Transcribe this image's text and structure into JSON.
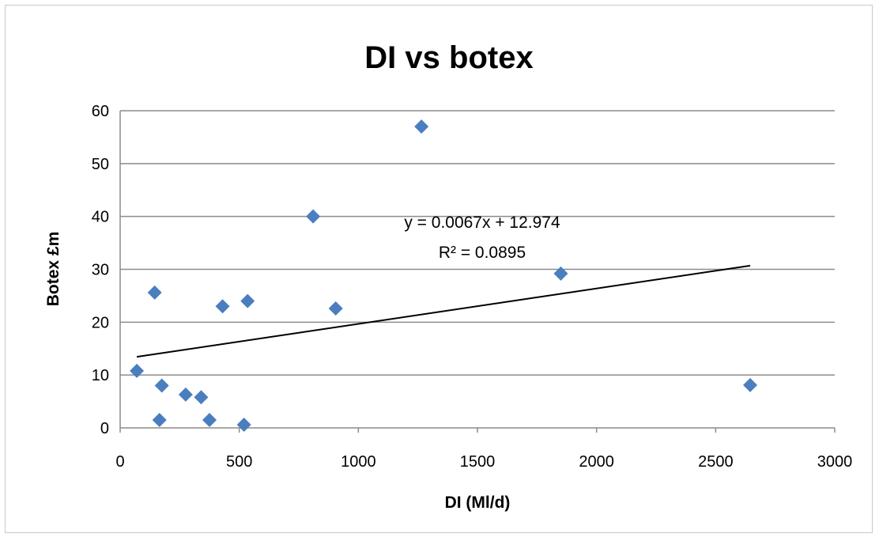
{
  "chart_data": {
    "type": "scatter",
    "title": "DI vs botex",
    "xlabel": "DI (Ml/d)",
    "ylabel": "Botex £m",
    "xlim": [
      0,
      3000
    ],
    "ylim": [
      0,
      60
    ],
    "x_ticks": [
      0,
      500,
      1000,
      1500,
      2000,
      2500,
      3000
    ],
    "y_ticks": [
      0,
      10,
      20,
      30,
      40,
      50,
      60
    ],
    "grid": "horizontal",
    "legend": "none",
    "marker": "diamond",
    "series_color": "#4a7ebf",
    "trendline_color": "#000000",
    "series": [
      {
        "points": [
          {
            "x": 70,
            "y": 10.8
          },
          {
            "x": 145,
            "y": 25.6
          },
          {
            "x": 165,
            "y": 1.5
          },
          {
            "x": 175,
            "y": 8.0
          },
          {
            "x": 275,
            "y": 6.3
          },
          {
            "x": 340,
            "y": 5.8
          },
          {
            "x": 375,
            "y": 1.5
          },
          {
            "x": 430,
            "y": 23.0
          },
          {
            "x": 520,
            "y": 0.6
          },
          {
            "x": 535,
            "y": 24.0
          },
          {
            "x": 810,
            "y": 40.0
          },
          {
            "x": 905,
            "y": 22.6
          },
          {
            "x": 1265,
            "y": 57.0
          },
          {
            "x": 1850,
            "y": 29.2
          },
          {
            "x": 2645,
            "y": 8.1
          }
        ]
      }
    ],
    "trendline": {
      "slope": 0.0067,
      "intercept": 12.974,
      "x_range": [
        70,
        2645
      ],
      "equation_text": "y = 0.0067x + 12.974",
      "r2_text": "R² = 0.0895"
    }
  }
}
